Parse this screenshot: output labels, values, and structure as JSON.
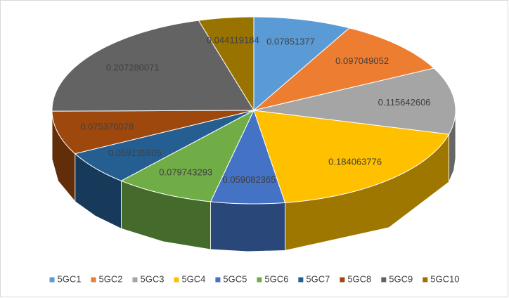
{
  "chart_data": {
    "type": "pie3d",
    "categories": [
      "5GC1",
      "5GC2",
      "5GC3",
      "5GC4",
      "5GC5",
      "5GC6",
      "5GC7",
      "5GC8",
      "5GC9",
      "5GC10"
    ],
    "values": [
      0.07851377,
      0.097049052,
      0.115642606,
      0.184063776,
      0.059082365,
      0.079743293,
      0.059135805,
      0.075370078,
      0.207280071,
      0.044119184
    ],
    "colors": [
      "#5b9bd5",
      "#ed7d31",
      "#a5a5a5",
      "#ffc000",
      "#4472c4",
      "#70ad47",
      "#255e91",
      "#9e480e",
      "#636363",
      "#997300"
    ],
    "legend": "bottom"
  }
}
